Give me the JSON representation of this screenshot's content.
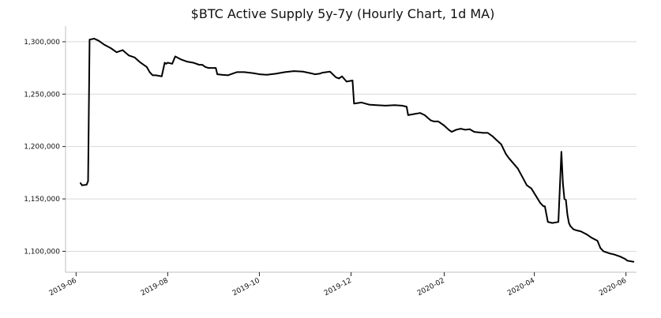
{
  "chart_data": {
    "type": "line",
    "title": "$BTC Active Supply 5y-7y (Hourly Chart, 1d MA)",
    "xlabel": "",
    "ylabel": "",
    "grid": true,
    "legend": "none",
    "ylim": [
      1080000,
      1315000
    ],
    "xlim": [
      "2019-05-25",
      "2020-06-08"
    ],
    "x_ticks": [
      "2019-06-01",
      "2019-08-01",
      "2019-10-01",
      "2019-12-01",
      "2020-02-01",
      "2020-04-01",
      "2020-06-01"
    ],
    "x_tick_labels": [
      "2019-06",
      "2019-08",
      "2019-10",
      "2019-12",
      "2020-02",
      "2020-04",
      "2020-06"
    ],
    "y_ticks": [
      1100000,
      1150000,
      1200000,
      1250000,
      1300000
    ],
    "y_tick_labels": [
      "1,100,000",
      "1,150,000",
      "1,200,000",
      "1,250,000",
      "1,300,000"
    ],
    "colors": {
      "series": "#000000",
      "grid": "#d9d9d9",
      "axis": "#bfbfbf"
    },
    "series": [
      {
        "name": "",
        "x": [
          "2019-06-04",
          "2019-06-05",
          "2019-06-08",
          "2019-06-09",
          "2019-06-10",
          "2019-06-13",
          "2019-06-16",
          "2019-06-20",
          "2019-06-24",
          "2019-06-28",
          "2019-07-02",
          "2019-07-06",
          "2019-07-10",
          "2019-07-14",
          "2019-07-18",
          "2019-07-20",
          "2019-07-22",
          "2019-07-24",
          "2019-07-28",
          "2019-07-30",
          "2019-07-31",
          "2019-08-01",
          "2019-08-04",
          "2019-08-06",
          "2019-08-10",
          "2019-08-14",
          "2019-08-18",
          "2019-08-22",
          "2019-08-24",
          "2019-08-26",
          "2019-08-28",
          "2019-09-02",
          "2019-09-03",
          "2019-09-06",
          "2019-09-10",
          "2019-09-16",
          "2019-09-21",
          "2019-09-27",
          "2019-10-01",
          "2019-10-06",
          "2019-10-12",
          "2019-10-18",
          "2019-10-24",
          "2019-10-30",
          "2019-11-04",
          "2019-11-07",
          "2019-11-10",
          "2019-11-12",
          "2019-11-17",
          "2019-11-21",
          "2019-11-23",
          "2019-11-25",
          "2019-11-28",
          "2019-12-02",
          "2019-12-03",
          "2019-12-08",
          "2019-12-13",
          "2019-12-18",
          "2019-12-24",
          "2019-12-30",
          "2020-01-04",
          "2020-01-07",
          "2020-01-08",
          "2020-01-12",
          "2020-01-16",
          "2020-01-19",
          "2020-01-23",
          "2020-01-25",
          "2020-01-28",
          "2020-02-01",
          "2020-02-04",
          "2020-02-06",
          "2020-02-09",
          "2020-02-12",
          "2020-02-15",
          "2020-02-18",
          "2020-02-21",
          "2020-02-24",
          "2020-02-27",
          "2020-03-01",
          "2020-03-04",
          "2020-03-07",
          "2020-03-10",
          "2020-03-13",
          "2020-03-15",
          "2020-03-18",
          "2020-03-21",
          "2020-03-24",
          "2020-03-27",
          "2020-03-30",
          "2020-04-02",
          "2020-04-05",
          "2020-04-07",
          "2020-04-08",
          "2020-04-10",
          "2020-04-13",
          "2020-04-15",
          "2020-04-17",
          "2020-04-19",
          "2020-04-20",
          "2020-04-21",
          "2020-04-22",
          "2020-04-23",
          "2020-04-24",
          "2020-04-25",
          "2020-04-27",
          "2020-04-29",
          "2020-05-02",
          "2020-05-06",
          "2020-05-09",
          "2020-05-13",
          "2020-05-15",
          "2020-05-17",
          "2020-05-19",
          "2020-05-21",
          "2020-05-24",
          "2020-05-28",
          "2020-05-31",
          "2020-06-02",
          "2020-06-04",
          "2020-06-06"
        ],
        "values": [
          1165000,
          1163000,
          1163500,
          1167000,
          1302000,
          1303000,
          1301000,
          1297000,
          1294000,
          1290000,
          1292000,
          1287000,
          1285000,
          1280000,
          1276000,
          1271000,
          1268000,
          1268000,
          1267000,
          1280000,
          1279000,
          1280000,
          1279000,
          1286000,
          1283000,
          1281000,
          1280000,
          1278000,
          1278000,
          1276000,
          1275000,
          1275000,
          1269000,
          1268500,
          1268000,
          1271000,
          1271000,
          1270000,
          1269000,
          1268500,
          1269500,
          1271000,
          1272000,
          1271500,
          1270000,
          1269000,
          1269500,
          1270500,
          1271500,
          1266000,
          1265000,
          1267000,
          1262000,
          1263000,
          1241000,
          1242000,
          1240000,
          1239500,
          1239000,
          1239500,
          1239000,
          1238000,
          1230000,
          1231000,
          1232000,
          1230000,
          1225000,
          1224000,
          1224000,
          1220000,
          1216000,
          1214000,
          1216000,
          1217000,
          1216000,
          1216500,
          1214000,
          1213500,
          1213000,
          1213000,
          1210000,
          1206000,
          1202000,
          1193000,
          1189000,
          1184000,
          1179000,
          1171000,
          1163000,
          1160000,
          1153000,
          1146000,
          1143000,
          1143000,
          1128000,
          1127000,
          1127500,
          1128000,
          1195000,
          1165000,
          1150000,
          1149000,
          1135000,
          1127000,
          1124000,
          1121000,
          1120000,
          1119000,
          1116000,
          1113000,
          1110000,
          1103000,
          1100000,
          1099000,
          1098000,
          1097000,
          1095000,
          1093000,
          1091000,
          1090500,
          1090000
        ]
      }
    ]
  }
}
